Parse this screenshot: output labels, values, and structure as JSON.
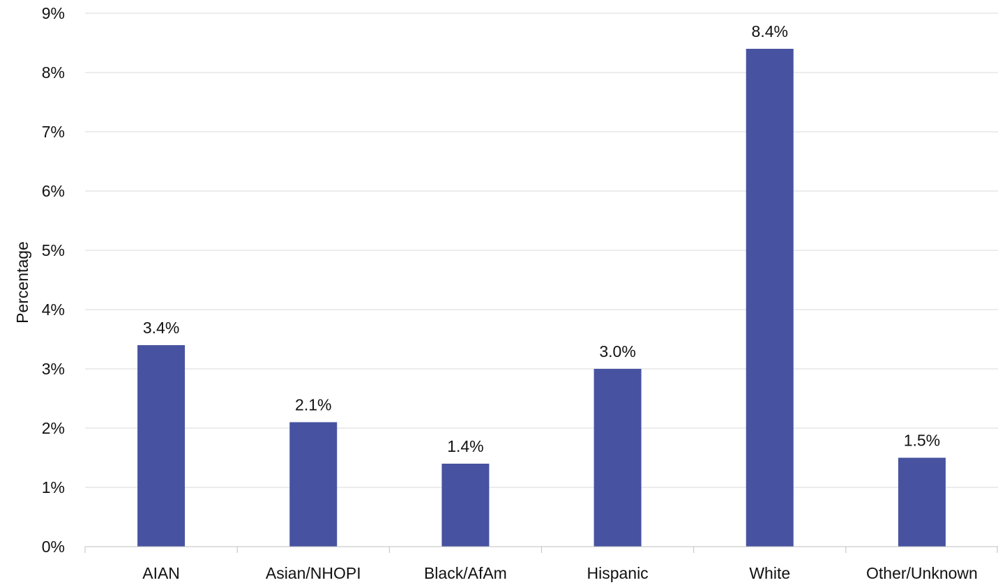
{
  "chart_data": {
    "type": "bar",
    "categories": [
      "AIAN",
      "Asian/NHOPI",
      "Black/AfAm",
      "Hispanic",
      "White",
      "Other/Unknown"
    ],
    "values": [
      3.4,
      2.1,
      1.4,
      3.0,
      8.4,
      1.5
    ],
    "data_labels": [
      "3.4%",
      "2.1%",
      "1.4%",
      "3.0%",
      "8.4%",
      "1.5%"
    ],
    "title": "",
    "xlabel": "",
    "ylabel": "Percentage",
    "ylim": [
      0,
      9
    ],
    "y_ticks": [
      "0%",
      "1%",
      "2%",
      "3%",
      "4%",
      "5%",
      "6%",
      "7%",
      "8%",
      "9%"
    ],
    "grid": true,
    "legend": "none",
    "bar_color": "#4753a1"
  }
}
